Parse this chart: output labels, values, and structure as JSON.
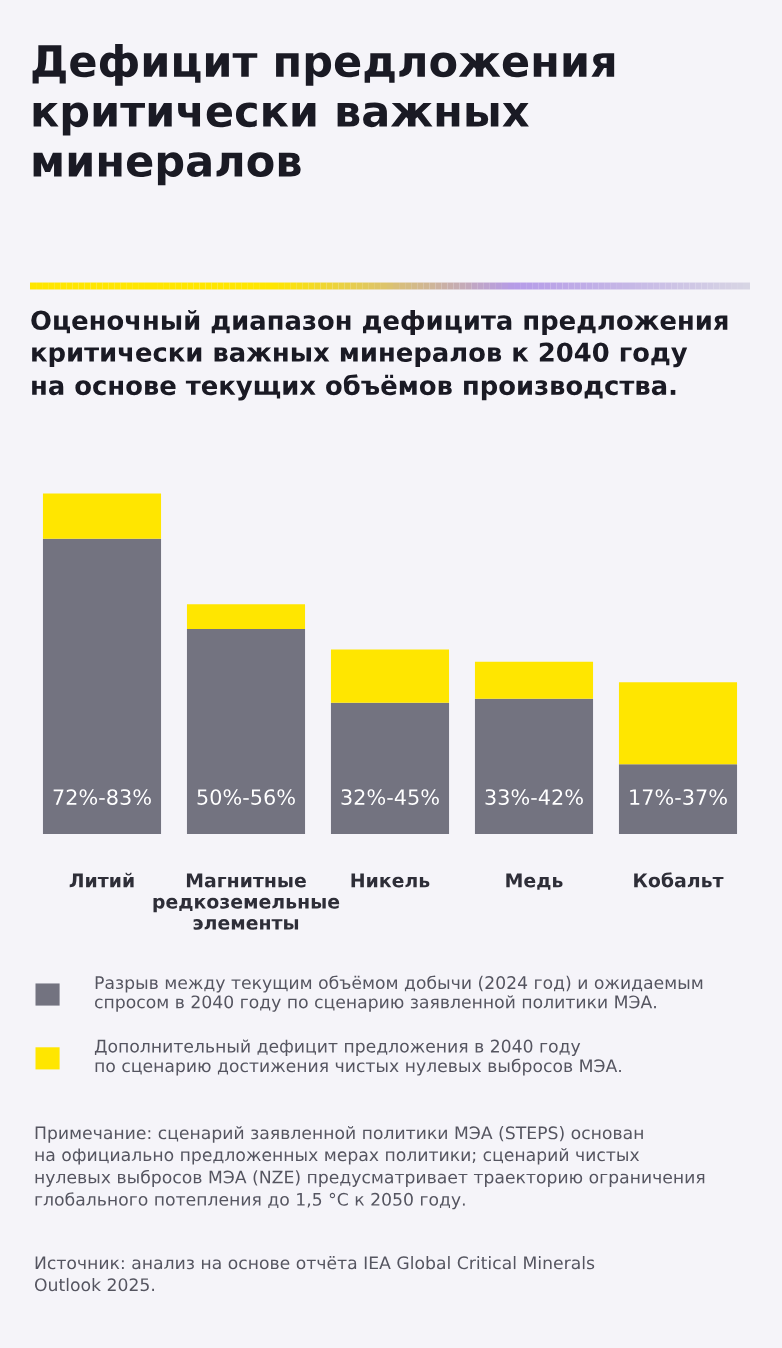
{
  "chart_data": {
    "type": "bar",
    "stacked": true,
    "title": "Дефицит предложения\nкритически важных\nминералов",
    "subtitle": "Оценочный диапазон дефицита предложения\nкритически важных минералов к 2040 году\nна основе текущих объёмов производства.",
    "categories": [
      "Литий",
      "Магнитные редкоземельные элементы",
      "Никель",
      "Медь",
      "Кобальт"
    ],
    "series": [
      {
        "name": "Разрыв между текущим объёмом добычи (2024 год) и ожидаемым\nспросом в 2040 году по сценарию заявленной политики МЭА.",
        "color": "#737380",
        "values": [
          72,
          50,
          32,
          33,
          17
        ],
        "value_labels": [
          "72%-83%",
          "50%-56%",
          "32%-45%",
          "33%-42%",
          "17%-37%"
        ]
      },
      {
        "name": "Дополнительный дефицит предложения в 2040 году\nпо сценарию достижения чистых нулевых выбросов МЭА.",
        "color": "#ffe600",
        "values": [
          11,
          6,
          13,
          9,
          20
        ]
      }
    ],
    "legend": "bottom",
    "grid": false,
    "annotations": [
      "Примечание: сценарий заявленной политики МЭА (STEPS) основан\nна официально предложенных мерах политики; сценарий чистых\nнулевых выбросов МЭА (NZE) предусматривает траекторию ограничения\nглобального потепления до 1,5 °C к 2050 году.",
      "Источник: анализ на основе отчёта IEA Global Critical Minerals\nOutlook 2025."
    ]
  }
}
